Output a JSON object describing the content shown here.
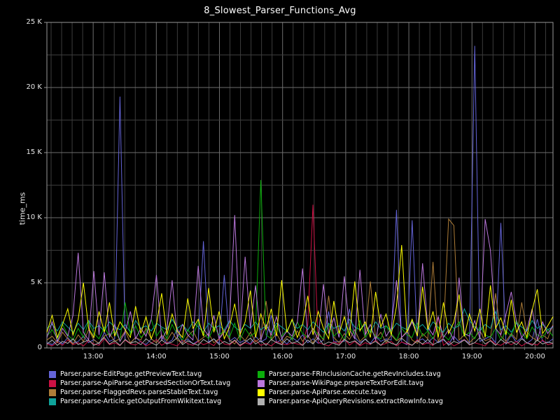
{
  "chart": {
    "title": "8_Slowest_Parser_Functions_Avg",
    "background_color": "#000000",
    "grid_major_color": "#6e6e6e",
    "grid_minor_color": "#3c3c3c",
    "border_color": "#999999",
    "text_color": "#e8e8e8"
  },
  "chart_data": {
    "type": "line",
    "title": "8_Slowest_Parser_Functions_Avg",
    "xlabel": "",
    "ylabel": "time_ms",
    "ylim": [
      0,
      25000
    ],
    "x_start": "12:16",
    "x_end": "20:17",
    "sample_interval_minutes": 5,
    "grid": true,
    "legend_position": "bottom",
    "yticks": [
      {
        "v": 0,
        "label": "0"
      },
      {
        "v": 5000,
        "label": "5 K"
      },
      {
        "v": 10000,
        "label": "10 K"
      },
      {
        "v": 15000,
        "label": "15 K"
      },
      {
        "v": 20000,
        "label": "20 K"
      },
      {
        "v": 25000,
        "label": "25 K"
      }
    ],
    "xticks": [
      "13:00",
      "14:00",
      "15:00",
      "16:00",
      "17:00",
      "18:00",
      "19:00",
      "20:00"
    ],
    "series": [
      {
        "name": "Parser.parse-EditPage.getPreviewText.tavg",
        "color": "#6464d8",
        "values": [
          400,
          250,
          600,
          300,
          800,
          350,
          500,
          900,
          400,
          650,
          300,
          1200,
          500,
          700,
          19300,
          600,
          350,
          800,
          450,
          250,
          700,
          400,
          900,
          350,
          600,
          1500,
          400,
          700,
          300,
          550,
          8200,
          450,
          700,
          350,
          5600,
          500,
          800,
          400,
          600,
          300,
          900,
          450,
          700,
          2500,
          400,
          650,
          300,
          800,
          500,
          1000,
          400,
          700,
          350,
          600,
          2800,
          450,
          500,
          500,
          3000,
          800,
          400,
          650,
          350,
          900,
          500,
          700,
          600,
          10600,
          450,
          250,
          9800,
          500,
          700,
          350,
          800,
          400,
          600,
          300,
          900,
          450,
          650,
          350,
          23200,
          500,
          700,
          900,
          400,
          9600,
          300,
          1000,
          450,
          800,
          350,
          650,
          2200,
          500,
          400,
          700
        ]
      },
      {
        "name": "Parser.parse-ApiParse.getParsedSectionOrText.tavg",
        "color": "#cc1144",
        "values": [
          300,
          150,
          450,
          200,
          600,
          250,
          400,
          150,
          550,
          300,
          200,
          700,
          250,
          400,
          180,
          600,
          300,
          220,
          500,
          150,
          350,
          650,
          200,
          450,
          280,
          150,
          600,
          320,
          200,
          500,
          250,
          400,
          180,
          700,
          300,
          220,
          550,
          150,
          400,
          260,
          600,
          200,
          350,
          150,
          500,
          300,
          250,
          400,
          300,
          200,
          1800,
          11000,
          400,
          280,
          150,
          450,
          300,
          700,
          220,
          500,
          150,
          400,
          260,
          600,
          200,
          350,
          500,
          150,
          450,
          300,
          200,
          650,
          250,
          400,
          180,
          2400,
          200,
          500,
          150,
          350,
          650,
          220,
          400,
          280,
          150,
          600,
          300,
          200,
          450,
          250,
          500,
          150,
          400,
          300,
          220,
          600,
          250,
          350
        ]
      },
      {
        "name": "Parser.parse-FlaggedRevs.parseStableText.tavg",
        "color": "#ae7d38",
        "values": [
          600,
          900,
          400,
          1200,
          700,
          300,
          1000,
          500,
          1400,
          600,
          350,
          900,
          1100,
          500,
          700,
          1300,
          400,
          800,
          600,
          1500,
          700,
          400,
          1000,
          550,
          1200,
          600,
          350,
          900,
          1300,
          500,
          800,
          1100,
          400,
          700,
          1400,
          600,
          300,
          1000,
          550,
          1200,
          450,
          800,
          3600,
          600,
          1100,
          400,
          900,
          700,
          1300,
          500,
          1000,
          350,
          1200,
          600,
          4000,
          800,
          400,
          1100,
          650,
          1400,
          500,
          900,
          5100,
          700,
          1200,
          400,
          1000,
          550,
          800,
          1300,
          600,
          350,
          1100,
          700,
          6600,
          500,
          1200,
          9900,
          9400,
          600,
          1000,
          400,
          800,
          1300,
          550,
          700,
          4200,
          900,
          500,
          1100,
          650,
          3500,
          1200,
          800,
          550,
          1000,
          700,
          1800
        ]
      },
      {
        "name": "Parser.parse-Article.getOutputFromWikitext.tavg",
        "color": "#0fa39a",
        "values": [
          1500,
          1800,
          1300,
          2000,
          1600,
          1200,
          1900,
          1400,
          2100,
          1500,
          1700,
          1300,
          2000,
          1600,
          1400,
          1800,
          1200,
          2100,
          1500,
          1700,
          1300,
          1900,
          1600,
          1400,
          2200,
          1500,
          1800,
          1300,
          2000,
          1600,
          1200,
          1900,
          1500,
          1700,
          1400,
          2100,
          1600,
          1300,
          1800,
          1500,
          2000,
          1400,
          1700,
          1200,
          1900,
          1600,
          1300,
          2100,
          1500,
          1800,
          1400,
          2000,
          1600,
          1200,
          1900,
          1500,
          1700,
          1300,
          2200,
          1600,
          1400,
          1800,
          1200,
          2000,
          1500,
          1700,
          1300,
          1900,
          1600,
          1400,
          2100,
          1500,
          1800,
          1300,
          2000,
          1600,
          1200,
          1900,
          1500,
          1700,
          3000,
          2100,
          1600,
          1300,
          1800,
          1500,
          2800,
          1400,
          1700,
          1200,
          1900,
          1600,
          1300,
          2100,
          1500,
          1800,
          1400,
          1600
        ]
      },
      {
        "name": "Parser.parse-FRInclusionCache.getRevIncludes.tavg",
        "color": "#0bae0b",
        "values": [
          900,
          1400,
          700,
          1800,
          1000,
          600,
          1500,
          800,
          2000,
          1100,
          700,
          1600,
          900,
          1300,
          600,
          3500,
          1000,
          1700,
          800,
          1200,
          2200,
          900,
          1500,
          700,
          1800,
          1000,
          600,
          1400,
          900,
          2000,
          1100,
          700,
          1600,
          1000,
          1300,
          800,
          1900,
          600,
          1500,
          900,
          1200,
          12900,
          1000,
          700,
          1700,
          900,
          1400,
          600,
          2000,
          1100,
          800,
          1500,
          1000,
          700,
          1800,
          900,
          1300,
          600,
          1600,
          1000,
          2100,
          800,
          1400,
          900,
          700,
          1700,
          1100,
          600,
          1500,
          1000,
          800,
          1900,
          900,
          1300,
          700,
          1600,
          1000,
          600,
          1400,
          2000,
          900,
          1200,
          700,
          1700,
          1000,
          800,
          1500,
          600,
          1300,
          900,
          2100,
          1100,
          700,
          1600,
          1000,
          800,
          1400,
          900
        ]
      },
      {
        "name": "Parser.parse-WikiPage.prepareTextForEdit.tavg",
        "color": "#bb77dd",
        "values": [
          800,
          2000,
          500,
          1500,
          900,
          2500,
          7300,
          1200,
          600,
          5900,
          1000,
          5800,
          800,
          1800,
          500,
          1200,
          2800,
          700,
          1500,
          900,
          2200,
          5600,
          600,
          1400,
          5200,
          800,
          1800,
          1000,
          600,
          6300,
          1500,
          900,
          2500,
          700,
          1200,
          2000,
          10200,
          800,
          7000,
          1500,
          4800,
          600,
          1800,
          1000,
          2400,
          700,
          1300,
          900,
          2000,
          6100,
          800,
          1500,
          600,
          4900,
          1100,
          2300,
          800,
          5500,
          1400,
          700,
          6000,
          1000,
          1800,
          600,
          2600,
          900,
          1500,
          5200,
          800,
          1200,
          2000,
          900,
          6500,
          1600,
          1000,
          2400,
          800,
          1400,
          600,
          5400,
          1100,
          900,
          2100,
          700,
          9900,
          7500,
          1500,
          1000,
          2600,
          4300,
          2000,
          800,
          1400,
          3000,
          600,
          2000,
          1100,
          1700
        ]
      },
      {
        "name": "Parser.parse-ApiParse.execute.tavg",
        "color": "#ffff00",
        "values": [
          1200,
          2500,
          800,
          1800,
          3000,
          1000,
          2200,
          5000,
          1500,
          800,
          2800,
          1200,
          3500,
          900,
          2000,
          1400,
          800,
          3200,
          1100,
          2400,
          700,
          1800,
          4200,
          1000,
          2600,
          1300,
          800,
          3800,
          1500,
          2200,
          900,
          4600,
          1200,
          2800,
          700,
          1600,
          3400,
          1000,
          2000,
          4400,
          800,
          2600,
          1400,
          3000,
          900,
          5200,
          1200,
          2200,
          800,
          1800,
          4000,
          1000,
          2800,
          1500,
          700,
          3600,
          1100,
          2400,
          900,
          5100,
          1300,
          2000,
          800,
          4300,
          1600,
          2600,
          1000,
          3200,
          7900,
          1200,
          2200,
          900,
          4700,
          1400,
          2800,
          800,
          3500,
          1100,
          2000,
          4100,
          900,
          2600,
          1300,
          3000,
          800,
          4800,
          1500,
          2300,
          1000,
          3700,
          1200,
          2000,
          800,
          2900,
          4500,
          1100,
          1700,
          2400
        ]
      },
      {
        "name": "Parser.parse-ApiQueryRevisions.extractRowInfo.tavg",
        "color": "#b0b0b0",
        "values": [
          300,
          600,
          200,
          500,
          350,
          700,
          250,
          450,
          600,
          200,
          400,
          800,
          300,
          550,
          200,
          650,
          350,
          500,
          250,
          700,
          400,
          200,
          600,
          300,
          450,
          800,
          250,
          550,
          350,
          200,
          650,
          400,
          700,
          250,
          500,
          300,
          600,
          200,
          450,
          750,
          300,
          550,
          200,
          650,
          400,
          250,
          700,
          350,
          500,
          200,
          600,
          300,
          800,
          250,
          450,
          350,
          200,
          650,
          400,
          550,
          250,
          700,
          300,
          500,
          200,
          600,
          350,
          250,
          750,
          400,
          200,
          550,
          300,
          650,
          250,
          450,
          700,
          200,
          500,
          350,
          600,
          250,
          400,
          800,
          300,
          550,
          200,
          650,
          350,
          500,
          250,
          700,
          400,
          200,
          600,
          300,
          450,
          350
        ]
      }
    ]
  }
}
